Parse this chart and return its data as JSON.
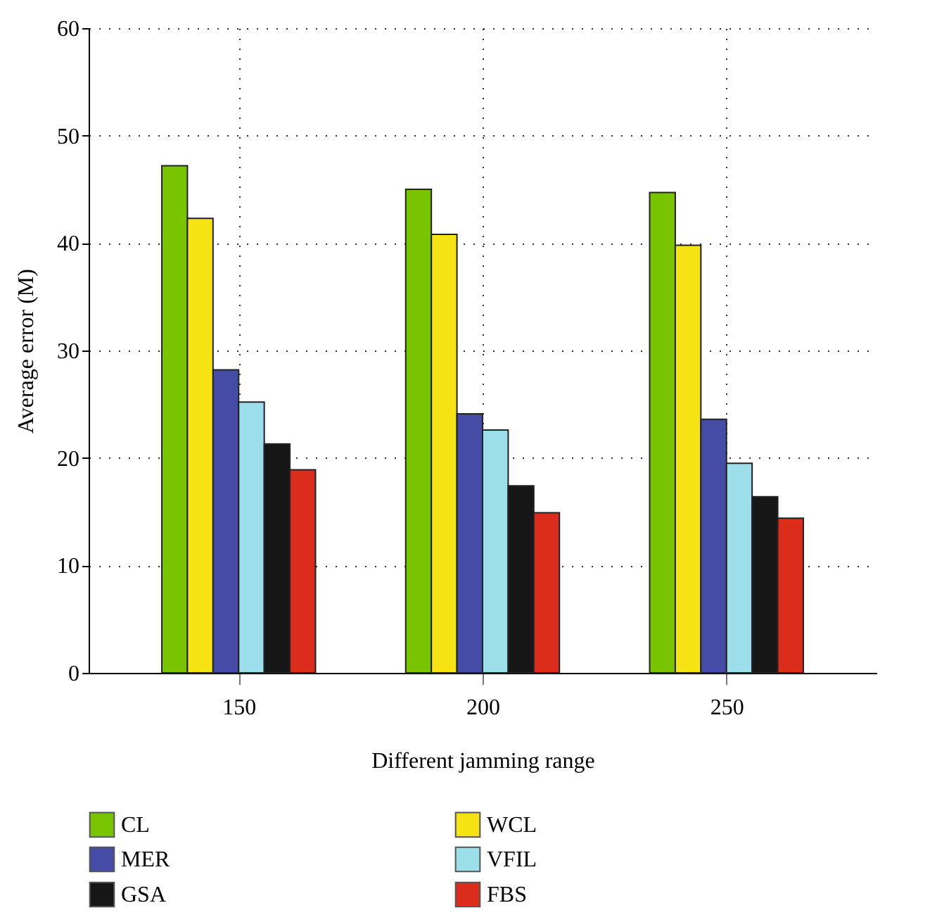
{
  "chart_data": {
    "type": "bar",
    "xlabel": "Different jamming range",
    "ylabel": "Average error (M)",
    "categories": [
      "150",
      "200",
      "250"
    ],
    "series": [
      {
        "name": "CL",
        "color": "#78c400",
        "values": [
          47.2,
          45.0,
          44.7
        ]
      },
      {
        "name": "WCL",
        "color": "#f5e314",
        "values": [
          42.3,
          40.8,
          39.8
        ]
      },
      {
        "name": "MER",
        "color": "#444ca6",
        "values": [
          28.2,
          24.1,
          23.6
        ]
      },
      {
        "name": "VFIL",
        "color": "#9cdeea",
        "values": [
          25.2,
          22.6,
          19.5
        ]
      },
      {
        "name": "GSA",
        "color": "#161616",
        "values": [
          21.3,
          17.4,
          16.4
        ]
      },
      {
        "name": "FBS",
        "color": "#dc2c1c",
        "values": [
          18.9,
          14.9,
          14.4
        ]
      }
    ],
    "ylim": [
      0,
      60
    ],
    "yticks": [
      0,
      10,
      20,
      30,
      40,
      50,
      60
    ],
    "grid": true,
    "legend": "bottom"
  }
}
